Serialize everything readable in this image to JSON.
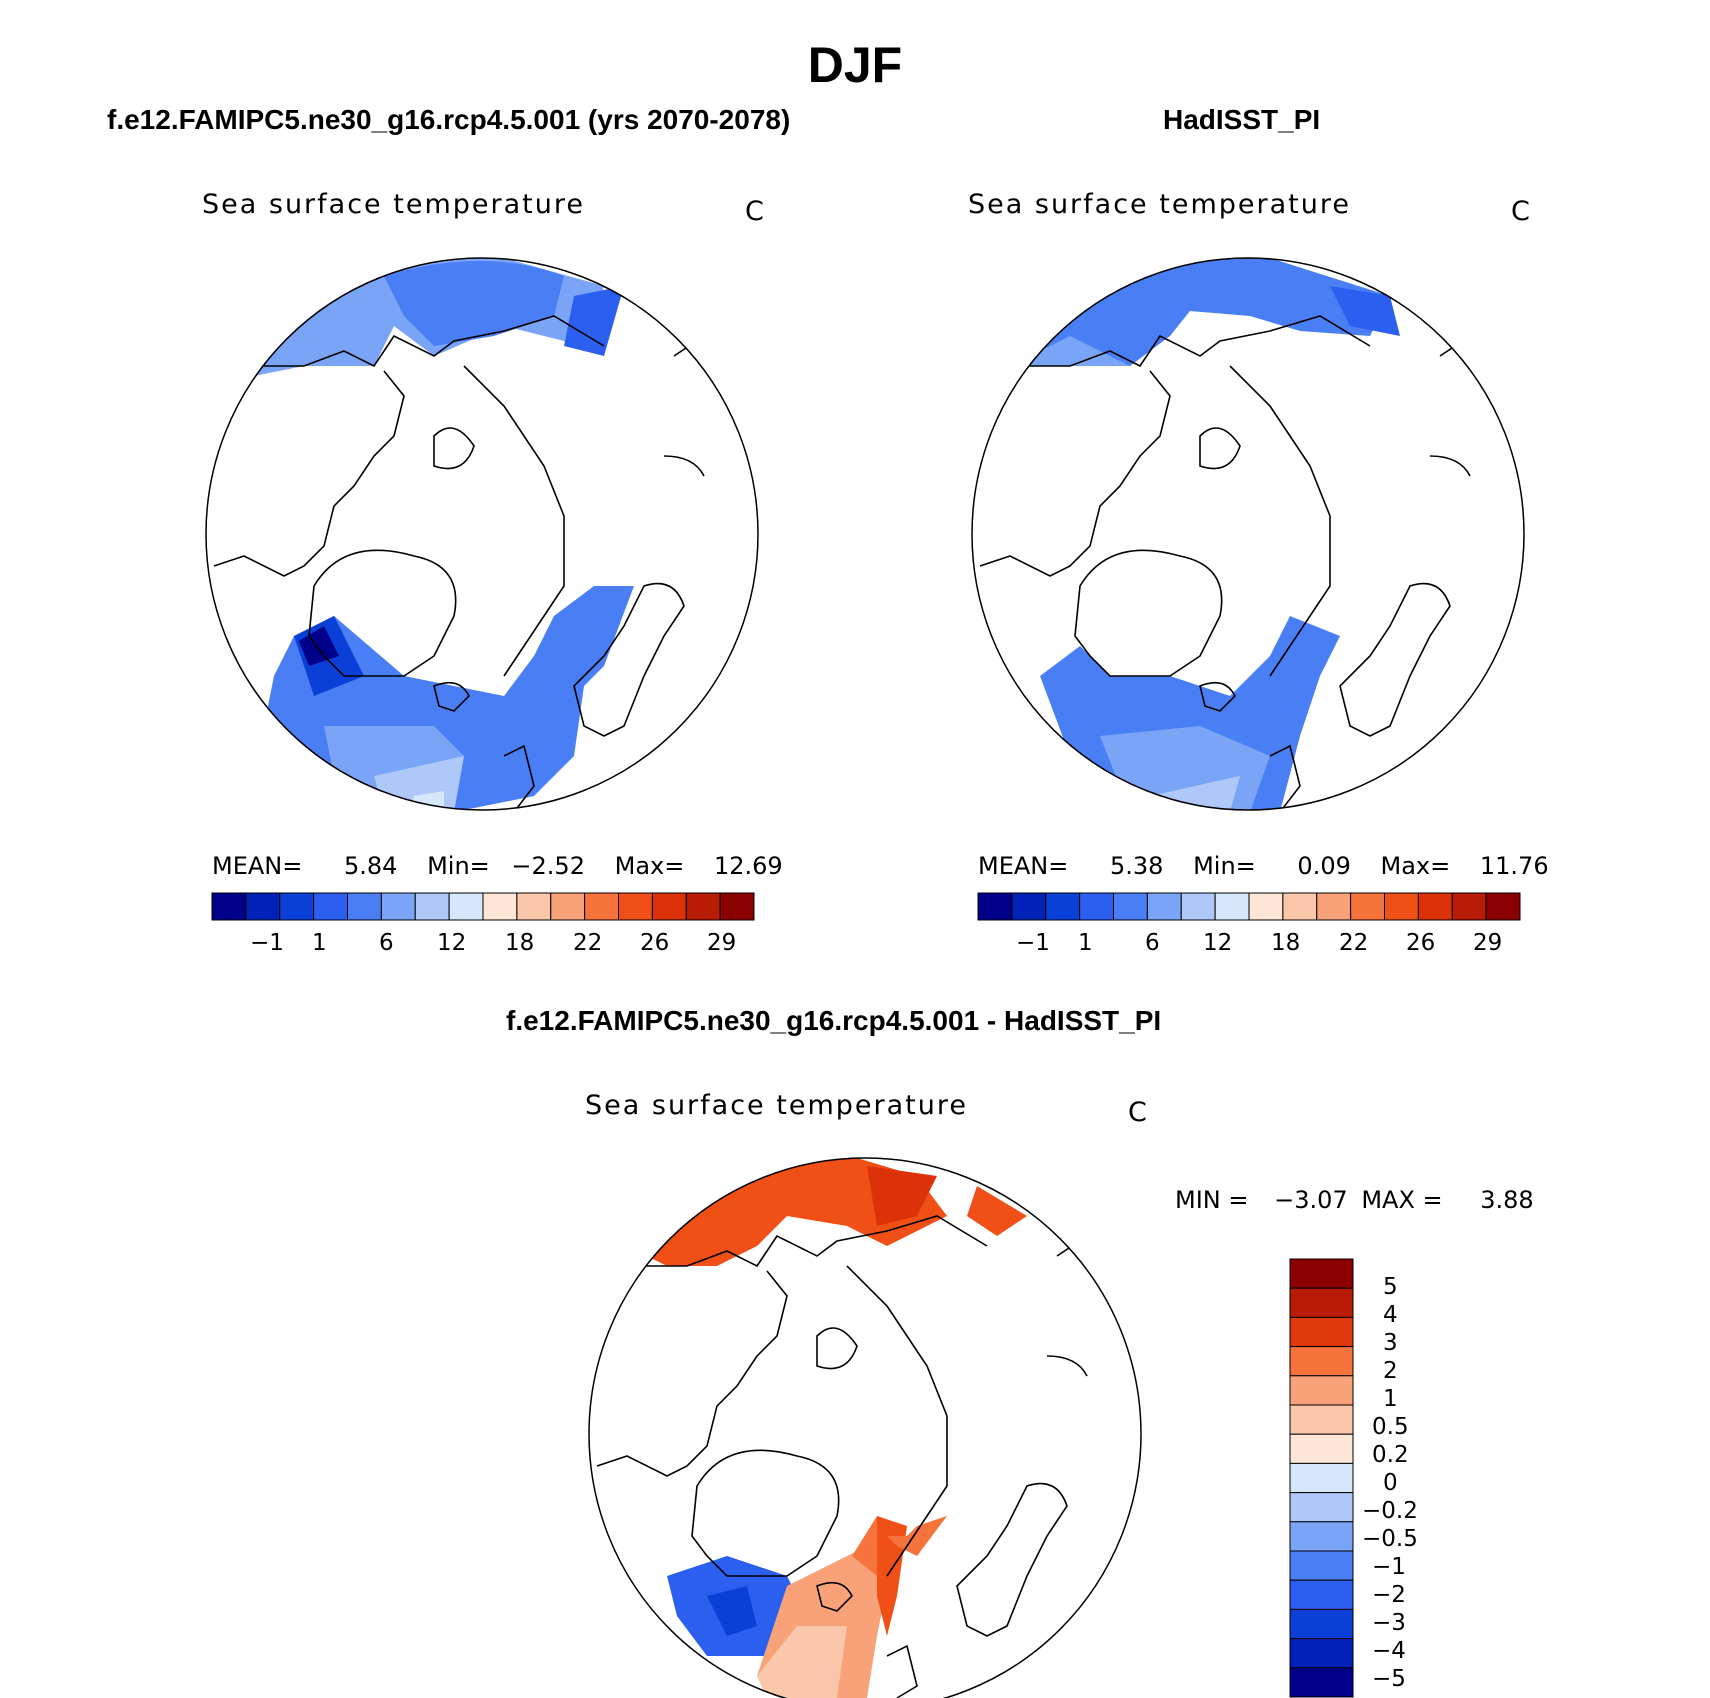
{
  "title": "DJF",
  "panels": [
    {
      "header": "f.e12.FAMIPC5.ne30_g16.rcp4.5.001 (yrs 2070-2078)",
      "variable": "Sea surface temperature",
      "units": "C",
      "stats": {
        "mean_label": "MEAN=",
        "mean": "5.84",
        "min_label": "Min=",
        "min": "−2.52",
        "max_label": "Max=",
        "max": "12.69"
      },
      "colorbar_ticks": [
        "−1",
        "1",
        "6",
        "12",
        "18",
        "22",
        "26",
        "29"
      ]
    },
    {
      "header": "HadISST_PI",
      "variable": "Sea surface temperature",
      "units": "C",
      "stats": {
        "mean_label": "MEAN=",
        "mean": "5.38",
        "min_label": "Min=",
        "min": "0.09",
        "max_label": "Max=",
        "max": "11.76"
      },
      "colorbar_ticks": [
        "−1",
        "1",
        "6",
        "12",
        "18",
        "22",
        "26",
        "29"
      ]
    },
    {
      "header": "f.e12.FAMIPC5.ne30_g16.rcp4.5.001 - HadISST_PI",
      "variable": "Sea surface temperature",
      "units": "C",
      "stats": {
        "min_label": "MIN =",
        "min": "−3.07",
        "max_label": "MAX =",
        "max": "3.88"
      },
      "colorbar_ticks": [
        "5",
        "4",
        "3",
        "2",
        "1",
        "0.5",
        "0.2",
        "0",
        "−0.2",
        "−0.5",
        "−1",
        "−2",
        "−3",
        "−4",
        "−5"
      ]
    }
  ],
  "colors": {
    "sst_scale": [
      "#00008b",
      "#0022b8",
      "#0a3fd8",
      "#2a5ff0",
      "#4a7ef5",
      "#7aa5f7",
      "#aec9f9",
      "#d6e6fb",
      "#fde6d6",
      "#fbc7aa",
      "#f9a27a",
      "#f6733c",
      "#f04f16",
      "#db3209",
      "#b81c04",
      "#8b0000"
    ],
    "anomaly_scale": [
      "#8b0000",
      "#b81c04",
      "#e03a0c",
      "#f6733c",
      "#f9a27a",
      "#fbc7aa",
      "#fde6d6",
      "#d6e6fb",
      "#aec9f9",
      "#7aa5f7",
      "#4a7ef5",
      "#2a5ff0",
      "#0a3fd8",
      "#0022b8",
      "#00008b"
    ]
  }
}
